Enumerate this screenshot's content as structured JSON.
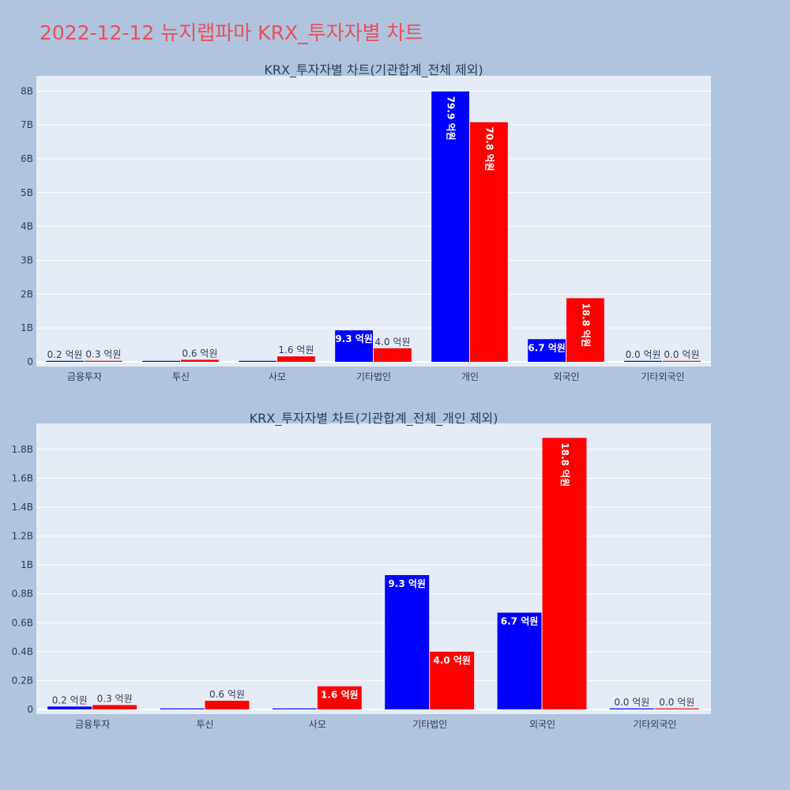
{
  "page_title": "2022-12-12 뉴지랩파마 KRX_투자자별 차트",
  "colors": {
    "page_bg": "#b0c4de",
    "plot_bg": "#e5ecf6",
    "grid": "#ffffff",
    "title": "#e8505b",
    "series_a": "#0000ff",
    "series_b": "#ff0000",
    "text": "#2a3f5f"
  },
  "chart_data": [
    {
      "type": "bar",
      "title": "KRX_투자자별 차트(기관합계_전체 제외)",
      "categories": [
        "금융투자",
        "투신",
        "사모",
        "기타법인",
        "개인",
        "외국인",
        "기타외국인"
      ],
      "series": [
        {
          "color": "#0000ff",
          "values": [
            20000000,
            0,
            0,
            930000000,
            7990000000,
            670000000,
            0
          ],
          "labels": [
            "0.2 억원",
            "",
            "",
            "9.3 억원",
            "79.9 억원",
            "6.7 억원",
            "0.0 억원"
          ]
        },
        {
          "color": "#ff0000",
          "values": [
            30000000,
            60000000,
            160000000,
            400000000,
            7080000000,
            1880000000,
            0
          ],
          "labels": [
            "0.3 억원",
            "0.6 억원",
            "1.6 억원",
            "4.0 억원",
            "70.8 억원",
            "18.8 억원",
            "0.0 억원"
          ]
        }
      ],
      "yticks": [
        0,
        1000000000,
        2000000000,
        3000000000,
        4000000000,
        5000000000,
        6000000000,
        7000000000,
        8000000000
      ],
      "ytick_labels": [
        "0",
        "1B",
        "2B",
        "3B",
        "4B",
        "5B",
        "6B",
        "7B",
        "8B"
      ],
      "ylim": [
        0,
        8450000000
      ],
      "grid": true
    },
    {
      "type": "bar",
      "title": "KRX_투자자별 차트(기관합계_전체_개인 제외)",
      "categories": [
        "금융투자",
        "투신",
        "사모",
        "기타법인",
        "외국인",
        "기타외국인"
      ],
      "series": [
        {
          "color": "#0000ff",
          "values": [
            20000000,
            0,
            0,
            930000000,
            670000000,
            0
          ],
          "labels": [
            "0.2 억원",
            "",
            "",
            "9.3 억원",
            "6.7 억원",
            "0.0 억원"
          ]
        },
        {
          "color": "#ff0000",
          "values": [
            30000000,
            60000000,
            160000000,
            400000000,
            1880000000,
            0
          ],
          "labels": [
            "0.3 억원",
            "0.6 억원",
            "1.6 억원",
            "4.0 억원",
            "18.8 억원",
            "0.0 억원"
          ]
        }
      ],
      "yticks": [
        0,
        200000000,
        400000000,
        600000000,
        800000000,
        1000000000,
        1200000000,
        1400000000,
        1600000000,
        1800000000
      ],
      "ytick_labels": [
        "0",
        "0.2B",
        "0.4B",
        "0.6B",
        "0.8B",
        "1B",
        "1.2B",
        "1.4B",
        "1.6B",
        "1.8B"
      ],
      "ylim": [
        0,
        1980000000
      ],
      "grid": true
    }
  ]
}
